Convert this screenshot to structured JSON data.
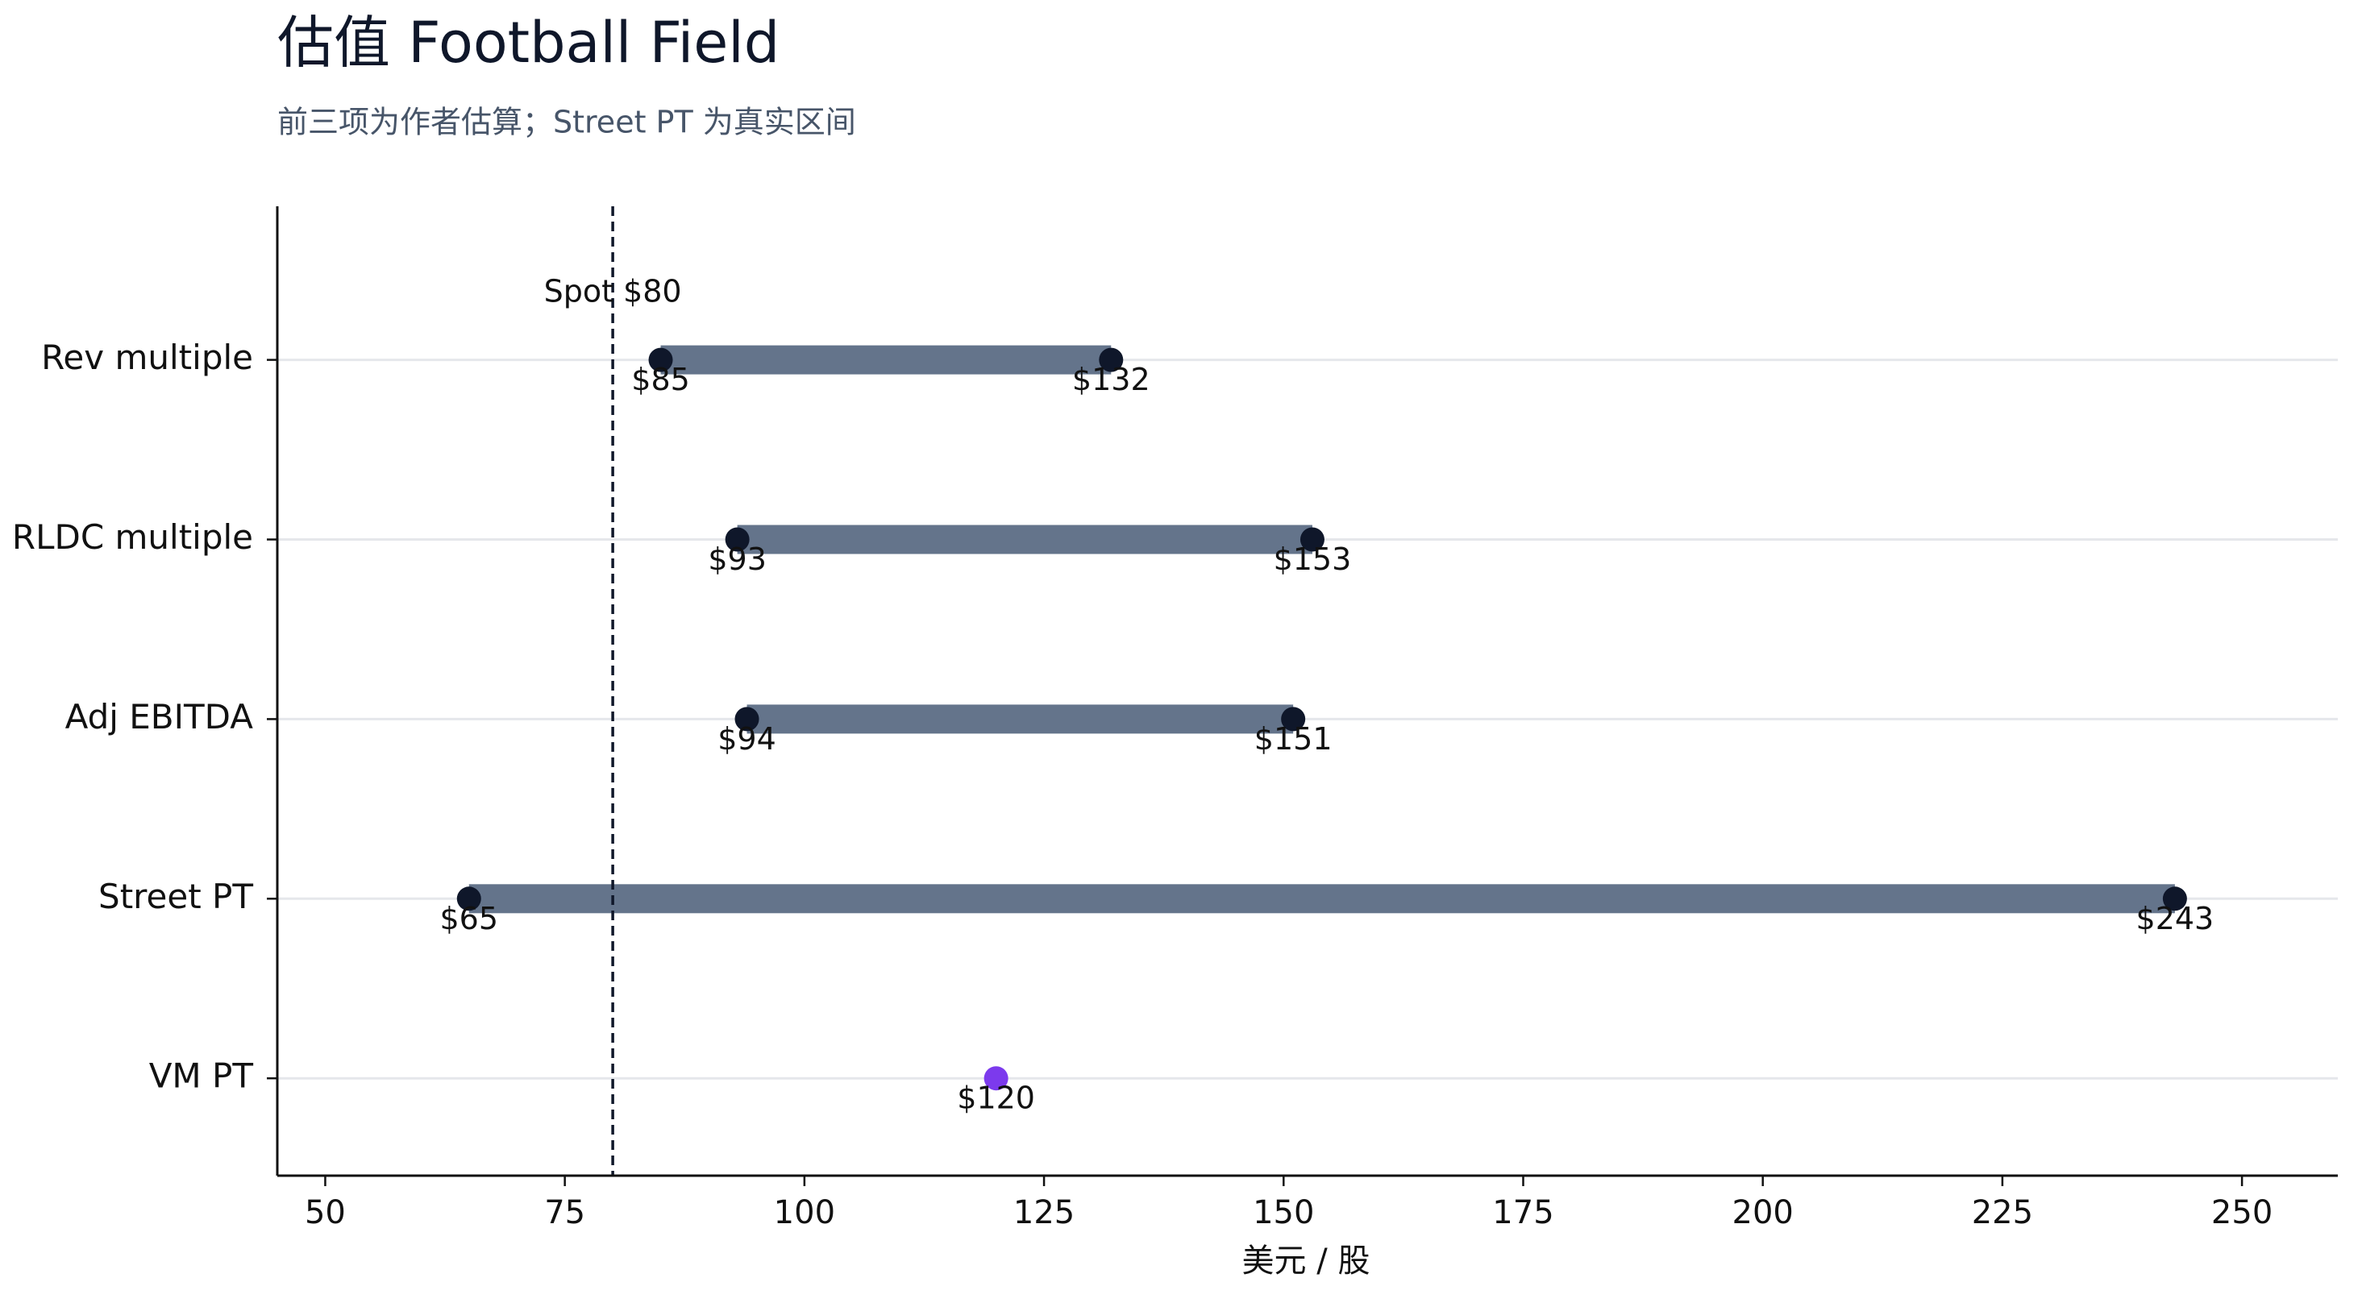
{
  "chart_data": {
    "type": "range",
    "title": "估值 Football Field",
    "subtitle": "前三项为作者估算；Street PT 为真实区间",
    "xlabel": "美元 / 股",
    "xlim": [
      45,
      260
    ],
    "xticks": [
      50,
      75,
      100,
      125,
      150,
      175,
      200,
      225,
      250
    ],
    "grid": true,
    "bar_color": "#64748b",
    "dot_color": "#0f172a",
    "point_color": "#7c3aed",
    "rows": [
      {
        "category": "Rev multiple",
        "values": [
          85,
          132
        ],
        "value_labels": [
          "$85",
          "$132"
        ]
      },
      {
        "category": "RLDC multiple",
        "values": [
          93,
          153
        ],
        "value_labels": [
          "$93",
          "$153"
        ]
      },
      {
        "category": "Adj EBITDA",
        "values": [
          94,
          151
        ],
        "value_labels": [
          "$94",
          "$151"
        ]
      },
      {
        "category": "Street PT",
        "values": [
          65,
          243
        ],
        "value_labels": [
          "$65",
          "$243"
        ]
      },
      {
        "category": "VM PT",
        "values": [
          120
        ],
        "value_labels": [
          "$120"
        ]
      }
    ],
    "reference": {
      "value": 80,
      "label": "Spot $80"
    }
  }
}
